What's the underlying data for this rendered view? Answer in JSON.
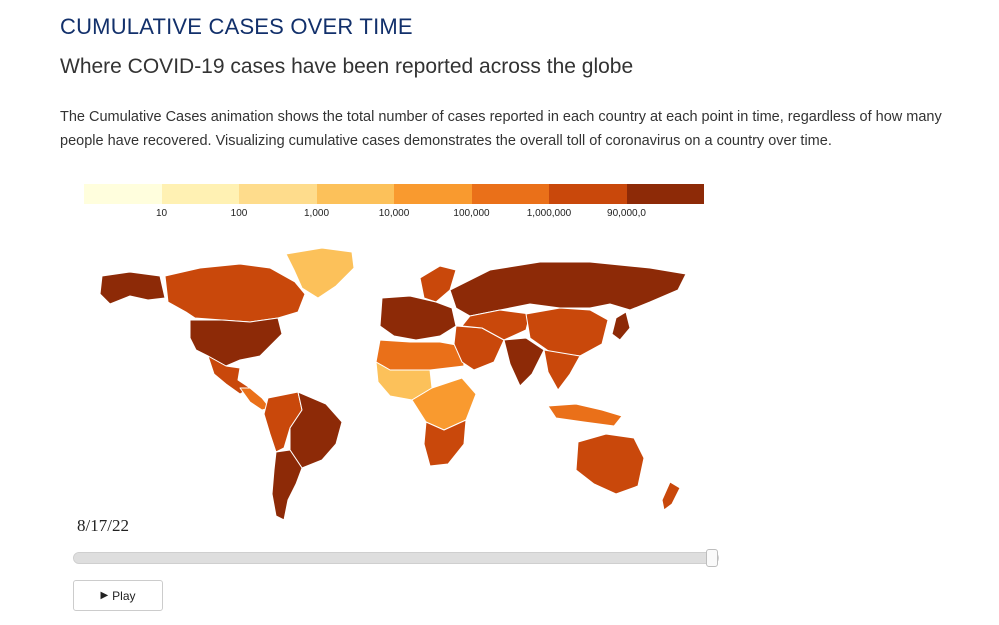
{
  "header": {
    "title": "CUMULATIVE CASES OVER TIME",
    "subtitle": "Where COVID-19 cases have been reported across the globe",
    "description": "The Cumulative Cases animation shows the total number of cases reported in each country at each point in time, regardless of how many people have recovered. Visualizing cumulative cases demonstrates the overall toll of coronavirus on a country over time."
  },
  "legend": {
    "colors": [
      "#fffedd",
      "#fff1b3",
      "#fedc8c",
      "#fcc15a",
      "#f99a2f",
      "#ea7019",
      "#c9480b",
      "#8d2a07"
    ],
    "labels": [
      "10",
      "100",
      "1,000",
      "10,000",
      "100,000",
      "1,000,000",
      "90,000,0"
    ]
  },
  "map": {
    "region_colors": {
      "usa": "#8d2a07",
      "alaska": "#8d2a07",
      "canada": "#c9480b",
      "greenland": "#fcc15a",
      "mexico": "#c9480b",
      "central_america": "#ea7019",
      "brazil": "#8d2a07",
      "south_america_west": "#c9480b",
      "argentina_chile": "#8d2a07",
      "europe": "#8d2a07",
      "scandinavia": "#c9480b",
      "russia": "#8d2a07",
      "north_africa": "#ea7019",
      "west_africa": "#fcc15a",
      "central_africa": "#f99a2f",
      "southern_africa": "#c9480b",
      "middle_east": "#c9480b",
      "central_asia": "#c9480b",
      "india": "#8d2a07",
      "china": "#c9480b",
      "southeast_asia": "#c9480b",
      "japan": "#8d2a07",
      "indonesia": "#ea7019",
      "australia": "#c9480b",
      "new_zealand": "#c9480b"
    }
  },
  "timeline": {
    "date": "8/17/22",
    "progress": 1.0,
    "play_label": "Play",
    "play_icon": "play-icon"
  }
}
